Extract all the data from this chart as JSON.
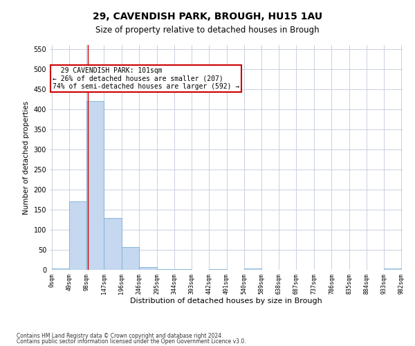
{
  "title1": "29, CAVENDISH PARK, BROUGH, HU15 1AU",
  "title2": "Size of property relative to detached houses in Brough",
  "xlabel": "Distribution of detached houses by size in Brough",
  "ylabel": "Number of detached properties",
  "footnote1": "Contains HM Land Registry data © Crown copyright and database right 2024.",
  "footnote2": "Contains public sector information licensed under the Open Government Licence v3.0.",
  "bar_edges": [
    0,
    49,
    98,
    147,
    196,
    246,
    295,
    344,
    393,
    442,
    491,
    540,
    589,
    638,
    687,
    737,
    786,
    835,
    884,
    933,
    982
  ],
  "bar_heights": [
    3,
    170,
    420,
    130,
    57,
    7,
    2,
    1,
    0,
    1,
    0,
    3,
    0,
    0,
    0,
    0,
    0,
    0,
    0,
    3
  ],
  "bar_color": "#c5d8f0",
  "bar_edge_color": "#7ab0d4",
  "grid_color": "#c8d0e0",
  "property_line_x": 101,
  "annotation_text": "  29 CAVENDISH PARK: 101sqm\n← 26% of detached houses are smaller (207)\n74% of semi-detached houses are larger (592) →",
  "annotation_box_color": "#ffffff",
  "annotation_border_color": "#cc0000",
  "ylim": [
    0,
    560
  ],
  "yticks": [
    0,
    50,
    100,
    150,
    200,
    250,
    300,
    350,
    400,
    450,
    500,
    550
  ],
  "tick_labels": [
    "0sqm",
    "49sqm",
    "98sqm",
    "147sqm",
    "196sqm",
    "246sqm",
    "295sqm",
    "344sqm",
    "393sqm",
    "442sqm",
    "491sqm",
    "540sqm",
    "589sqm",
    "638sqm",
    "687sqm",
    "737sqm",
    "786sqm",
    "835sqm",
    "884sqm",
    "933sqm",
    "982sqm"
  ],
  "fig_width": 6.0,
  "fig_height": 5.0,
  "dpi": 100
}
